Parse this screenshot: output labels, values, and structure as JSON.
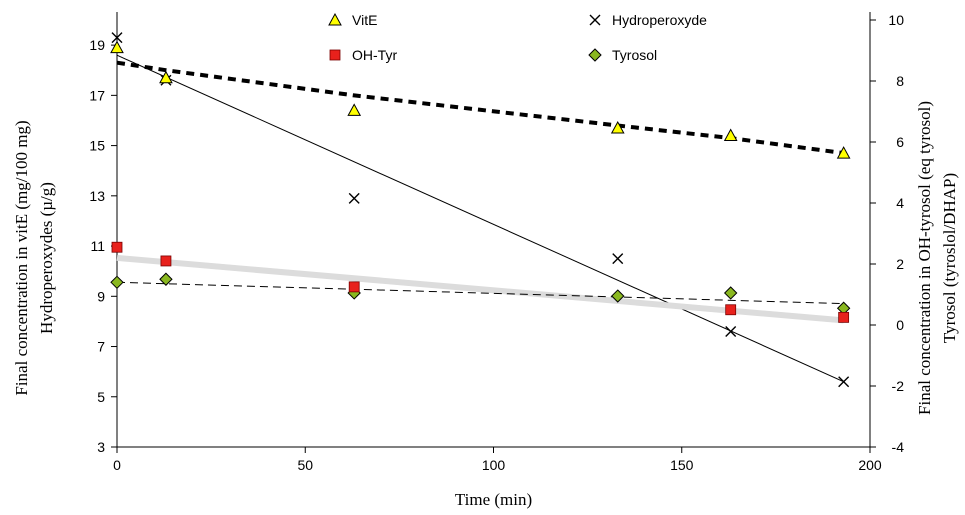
{
  "chart_data": {
    "type": "scatter",
    "xlabel": "Time (min)",
    "ylabel_left": [
      "Final concentration in vitE (mg/100 mg)",
      "Hydroperoxydes (µ/g)"
    ],
    "ylabel_right": [
      "Final concentration in OH-tyrosol (eq tyrosol)",
      "Tyrosol (tyroslol/DHAP)"
    ],
    "xlim": [
      0,
      200
    ],
    "xticks": [
      0,
      50,
      100,
      150,
      200
    ],
    "ylim_left": [
      3,
      20
    ],
    "yticks_left": [
      3,
      5,
      7,
      9,
      11,
      13,
      15,
      17,
      19
    ],
    "ylim_right": [
      -4,
      10
    ],
    "yticks_right": [
      -4,
      -2,
      0,
      2,
      4,
      6,
      8,
      10
    ],
    "legend_position": "top",
    "series": [
      {
        "name": "VitE",
        "axis": "left",
        "marker": "triangle",
        "color": "#ffff00",
        "x": [
          0,
          13,
          63,
          133,
          163,
          193
        ],
        "y": [
          18.9,
          17.7,
          16.4,
          15.7,
          15.4,
          14.7
        ],
        "trend": {
          "style": "thick-dashed",
          "x": [
            0,
            13,
            63,
            133,
            163,
            193
          ],
          "y": [
            18.3,
            18.0,
            17.0,
            15.8,
            15.3,
            14.7
          ]
        }
      },
      {
        "name": "Hydroperoxyde",
        "axis": "left",
        "marker": "x",
        "color": "#000000",
        "x": [
          0,
          13,
          63,
          133,
          163,
          193
        ],
        "y": [
          19.3,
          17.6,
          12.9,
          10.5,
          7.6,
          5.6
        ],
        "trend": {
          "style": "solid-thin",
          "x": [
            0,
            193
          ],
          "y": [
            18.6,
            5.6
          ]
        }
      },
      {
        "name": "OH-Tyr",
        "axis": "right",
        "marker": "square",
        "color": "#e8211c",
        "x": [
          0,
          13,
          63,
          163,
          193
        ],
        "y": [
          2.55,
          2.1,
          1.25,
          0.5,
          0.25
        ],
        "trend": {
          "style": "thick-light",
          "color": "#dcdcdc",
          "x": [
            0,
            193
          ],
          "y": [
            2.2,
            0.15
          ]
        }
      },
      {
        "name": "Tyrosol",
        "axis": "right",
        "marker": "diamond",
        "color": "#8ab820",
        "x": [
          0,
          13,
          63,
          133,
          163,
          193
        ],
        "y": [
          1.4,
          1.5,
          1.05,
          0.95,
          1.05,
          0.55
        ],
        "trend": {
          "style": "thin-dashed",
          "x": [
            0,
            193
          ],
          "y": [
            1.4,
            0.7
          ]
        }
      }
    ]
  }
}
